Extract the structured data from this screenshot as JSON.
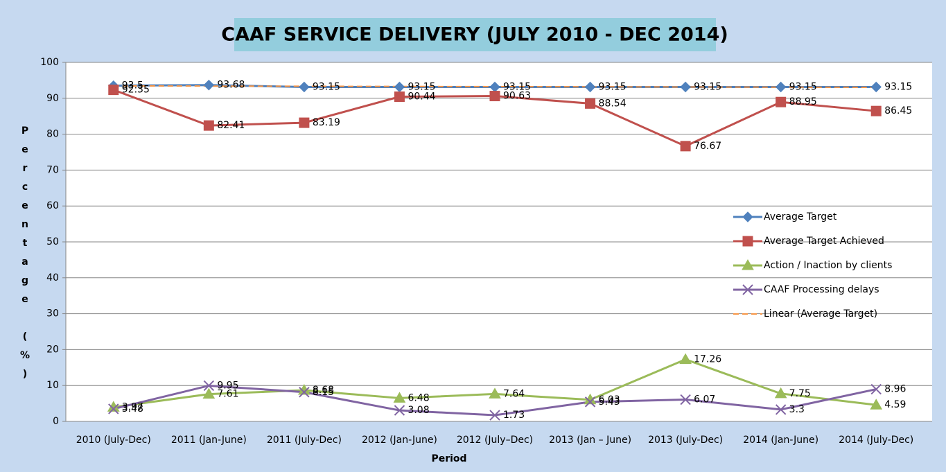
{
  "chart_data": {
    "type": "line",
    "title": "CAAF SERVICE DELIVERY (JULY 2010 - DEC 2014)",
    "y_label": "Percentage (%)",
    "x_label": "Period",
    "categories": [
      "2010 (July-Dec)",
      "2011 (Jan-June)",
      "2011 (July-Dec)",
      "2012 (Jan-June)",
      "2012 (July–Dec)",
      "2013 (Jan – June)",
      "2013 (July-Dec)",
      "2014 (Jan-June)",
      "2014 (July-Dec)"
    ],
    "series": [
      {
        "name": "Average Target",
        "color": "#4f81bd",
        "marker": "diamond",
        "values": [
          93.5,
          93.68,
          93.15,
          93.15,
          93.15,
          93.15,
          93.15,
          93.15,
          93.15
        ],
        "data_labels": true
      },
      {
        "name": "Average Target Achieved",
        "color": "#c0504d",
        "marker": "square",
        "values": [
          92.35,
          82.41,
          83.19,
          90.44,
          90.63,
          88.54,
          76.67,
          88.95,
          86.45
        ],
        "data_labels": true
      },
      {
        "name": "Action / Inaction by clients",
        "color": "#9bbb59",
        "marker": "triangle",
        "values": [
          3.97,
          7.61,
          8.68,
          6.48,
          7.64,
          6.03,
          17.26,
          7.75,
          4.59
        ],
        "data_labels": true
      },
      {
        "name": "CAAF Processing delays",
        "color": "#8064a2",
        "marker": "x",
        "values": [
          3.48,
          9.95,
          8.15,
          3.08,
          1.73,
          5.43,
          6.07,
          3.3,
          8.96
        ],
        "data_labels": true
      },
      {
        "name": "Linear (Average Target)",
        "color": "#f79646",
        "marker": "none",
        "dash": true,
        "values": [
          93.45,
          93.4,
          93.35,
          93.3,
          93.25,
          93.2,
          93.15,
          93.1,
          93.05
        ],
        "data_labels": false
      }
    ],
    "ylim": [
      0,
      100
    ],
    "yticks": [
      0,
      10,
      20,
      30,
      40,
      50,
      60,
      70,
      80,
      90,
      100
    ],
    "grid": true,
    "legend": "right"
  }
}
